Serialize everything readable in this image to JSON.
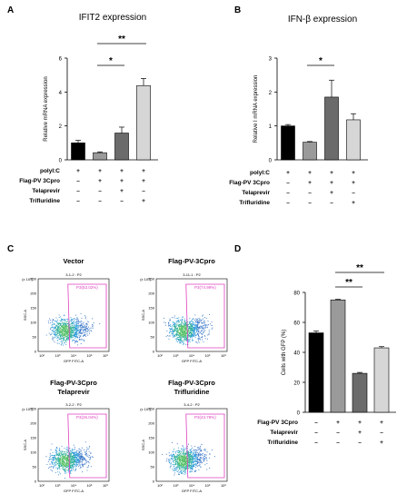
{
  "chart_data": [
    {
      "panel": "A",
      "type": "bar",
      "title": "IFIT2 expression",
      "ylabel": "Relative mRNA expression",
      "ylim": [
        0,
        6
      ],
      "yticks": [
        "0",
        "2",
        "4",
        "6"
      ],
      "values": [
        1.0,
        0.42,
        1.58,
        4.38
      ],
      "errors": [
        0.15,
        0.05,
        0.35,
        0.42
      ],
      "colors": [
        "#000000",
        "#9a9a9a",
        "#6b6b6b",
        "#d6d6d6"
      ],
      "significance": [
        {
          "from": 1,
          "to": 2,
          "label": "*"
        },
        {
          "from": 1,
          "to": 3,
          "label": "**"
        }
      ],
      "conditions": [
        {
          "label": "polyI:C",
          "signs": [
            "+",
            "+",
            "+",
            "+"
          ]
        },
        {
          "label": "Flag-PV 3Cpro",
          "signs": [
            "–",
            "+",
            "+",
            "+"
          ]
        },
        {
          "label": "Telaprevir",
          "signs": [
            "–",
            "–",
            "+",
            "–"
          ]
        },
        {
          "label": "Trifluridine",
          "signs": [
            "–",
            "–",
            "–",
            "+"
          ]
        }
      ]
    },
    {
      "panel": "B",
      "type": "bar",
      "title": "IFN-β expression",
      "ylabel": "Relative I mRNA expression",
      "ylim": [
        0,
        3
      ],
      "yticks": [
        "0",
        "1",
        "2",
        "3"
      ],
      "values": [
        1.0,
        0.52,
        1.85,
        1.18
      ],
      "errors": [
        0.04,
        0.02,
        0.5,
        0.18
      ],
      "colors": [
        "#000000",
        "#9a9a9a",
        "#6b6b6b",
        "#d6d6d6"
      ],
      "significance": [
        {
          "from": 1,
          "to": 2,
          "label": "*"
        }
      ],
      "conditions": [
        {
          "label": "polyI:C",
          "signs": [
            "+",
            "+",
            "+",
            "+"
          ]
        },
        {
          "label": "Flag-PV 3Cpro",
          "signs": [
            "–",
            "+",
            "+",
            "+"
          ]
        },
        {
          "label": "Telaprevir",
          "signs": [
            "–",
            "–",
            "+",
            "–"
          ]
        },
        {
          "label": "Trifluridine",
          "signs": [
            "–",
            "–",
            "–",
            "+"
          ]
        }
      ]
    },
    {
      "panel": "C",
      "type": "scatter",
      "plots": [
        {
          "title": [
            "Vector"
          ],
          "sample": "3-1-2 : P2",
          "gate": "P3(53.02%)"
        },
        {
          "title": [
            "Flag-PV-3Cpro"
          ],
          "sample": "3-11-1 : P2",
          "gate": "P3(74.99%)"
        },
        {
          "title": [
            "Flag-PV-3Cpro",
            "Telaprevir"
          ],
          "sample": "3-2-2 : P2",
          "gate": "P3(26.04%)"
        },
        {
          "title": [
            "Flag-PV-3Cpro",
            "Trifluridine"
          ],
          "sample": "3-4-2 : P2",
          "gate": "P3(43.78%)"
        }
      ],
      "xlabel": "GFP FITC-A",
      "ylabel": "SSC-A",
      "yunit": "(x 10³)",
      "xticks": [
        "10²",
        "10³",
        "10⁴",
        "10⁵",
        "10⁶"
      ],
      "yticks": [
        "0",
        "50",
        "100",
        "150",
        "200",
        "250"
      ]
    },
    {
      "panel": "D",
      "type": "bar",
      "ylabel": "Cells with GFP (%)",
      "ylim": [
        0,
        80
      ],
      "yticks": [
        "0",
        "20",
        "40",
        "60",
        "80"
      ],
      "values": [
        53.0,
        75.0,
        26.0,
        43.0
      ],
      "errors": [
        1.2,
        0.4,
        0.6,
        0.8
      ],
      "colors": [
        "#000000",
        "#9a9a9a",
        "#6b6b6b",
        "#d6d6d6"
      ],
      "significance": [
        {
          "from": 1,
          "to": 2,
          "label": "**"
        },
        {
          "from": 1,
          "to": 3,
          "label": "**"
        }
      ],
      "conditions": [
        {
          "label": "Flag-PV 3Cpro",
          "signs": [
            "–",
            "+",
            "+",
            "+"
          ]
        },
        {
          "label": "Telaprevir",
          "signs": [
            "–",
            "–",
            "+",
            "–"
          ]
        },
        {
          "label": "Trifluridine",
          "signs": [
            "–",
            "–",
            "–",
            "+"
          ]
        }
      ]
    }
  ]
}
